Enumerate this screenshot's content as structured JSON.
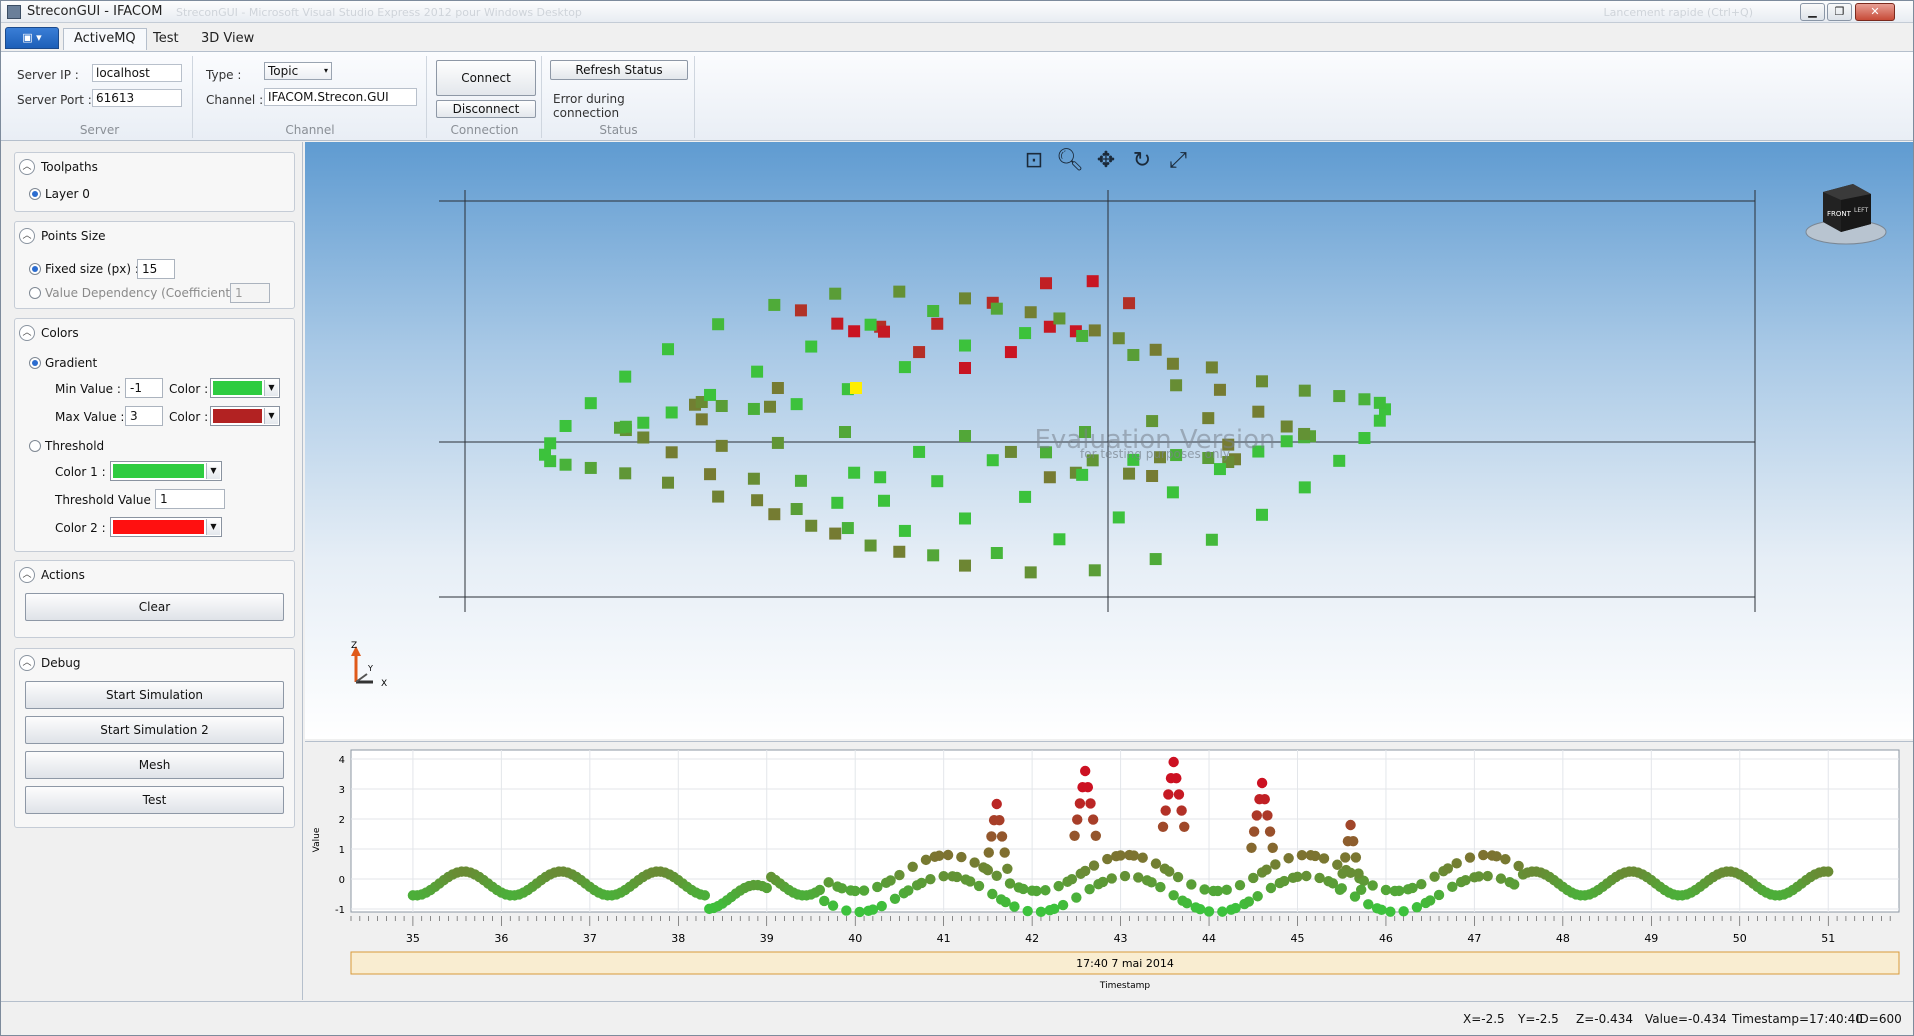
{
  "window": {
    "title": "StreconGUI - IFACOM",
    "ghost_title": "StreconGUI - Microsoft Visual Studio Express 2012 pour Windows Desktop",
    "ghost_right": "Lancement rapide (Ctrl+Q)",
    "minimize_icon": "minimize-icon",
    "maximize_icon": "maximize-icon",
    "close_icon": "close-icon"
  },
  "ribbon": {
    "tabs": [
      "ActiveMQ",
      "Test",
      "3D View"
    ],
    "active_tab": "ActiveMQ",
    "server": {
      "ip_label": "Server IP :",
      "ip_value": "localhost",
      "port_label": "Server Port :",
      "port_value": "61613",
      "caption": "Server"
    },
    "channel": {
      "type_label": "Type :",
      "type_value": "Topic",
      "channel_label": "Channel :",
      "channel_value": "IFACOM.Strecon.GUI",
      "caption": "Channel"
    },
    "connection": {
      "connect_label": "Connect",
      "disconnect_label": "Disconnect",
      "caption": "Connection"
    },
    "status": {
      "refresh_label": "Refresh Status",
      "message": "Error during connection",
      "caption": "Status"
    }
  },
  "left_panel": {
    "toolpaths": {
      "title": "Toolpaths",
      "layer": "Layer 0"
    },
    "points_size": {
      "title": "Points Size",
      "fixed_label": "Fixed size (px) :",
      "fixed_value": "15",
      "dependency_label": "Value Dependency (Coefficient) :",
      "dependency_value": "1"
    },
    "colors": {
      "title": "Colors",
      "gradient_label": "Gradient",
      "min_label": "Min Value :",
      "min_value": "-1",
      "max_label": "Max Value :",
      "max_value": "3",
      "color_label": "Color :",
      "min_color": "#2ecc40",
      "max_color": "#b22222",
      "threshold_label": "Threshold",
      "color1_label": "Color 1 :",
      "color1": "#2ecc40",
      "threshold_value_label": "Threshold Value :",
      "threshold_value": "1",
      "color2_label": "Color 2 :",
      "color2": "#ff1010"
    },
    "actions": {
      "title": "Actions",
      "clear_label": "Clear"
    },
    "debug": {
      "title": "Debug",
      "buttons": [
        "Start Simulation",
        "Start Simulation 2",
        "Mesh",
        "Test"
      ]
    }
  },
  "view3d": {
    "watermark_title": "Evaluation Version",
    "watermark_sub": "for testing purposes only",
    "toolbar_icons": [
      "zoom-extents-icon",
      "zoom-icon",
      "pan-icon",
      "rotate-icon",
      "fullscreen-icon"
    ],
    "navcube_face": "FRONT",
    "navcube_side": "LEFT",
    "axis_z": "Z",
    "axis_y": "Y",
    "axis_x": "X",
    "low_color": "#3cc23c",
    "high_color": "#cc1122",
    "highlight_color": "#ffee00"
  },
  "chart_data": {
    "type": "scatter",
    "title": "",
    "xlabel": "Timestamp",
    "ylabel": "Value",
    "xlim": [
      34.3,
      51.8
    ],
    "ylim": [
      -1.1,
      4.3
    ],
    "x_ticks": [
      "35",
      "36",
      "37",
      "38",
      "39",
      "40",
      "41",
      "42",
      "43",
      "44",
      "45",
      "46",
      "47",
      "48",
      "49",
      "50",
      "51"
    ],
    "y_ticks": [
      "-1",
      "0",
      "1",
      "2",
      "3",
      "4"
    ],
    "date_band": "17:40 7 mai 2014",
    "grid": true,
    "color_min_value": -1,
    "color_max_value": 3,
    "peaks": [
      {
        "x": 41.6,
        "y": 2.5
      },
      {
        "x": 42.6,
        "y": 3.6
      },
      {
        "x": 43.6,
        "y": 3.9
      },
      {
        "x": 44.6,
        "y": 3.2
      },
      {
        "x": 45.6,
        "y": 1.8
      }
    ]
  },
  "statusbar": {
    "x": "X=-2.5",
    "y": "Y=-2.5",
    "z": "Z=-0.434",
    "value": "Value=-0.434",
    "timestamp": "Timestamp=17:40:40",
    "id": "ID=600"
  }
}
